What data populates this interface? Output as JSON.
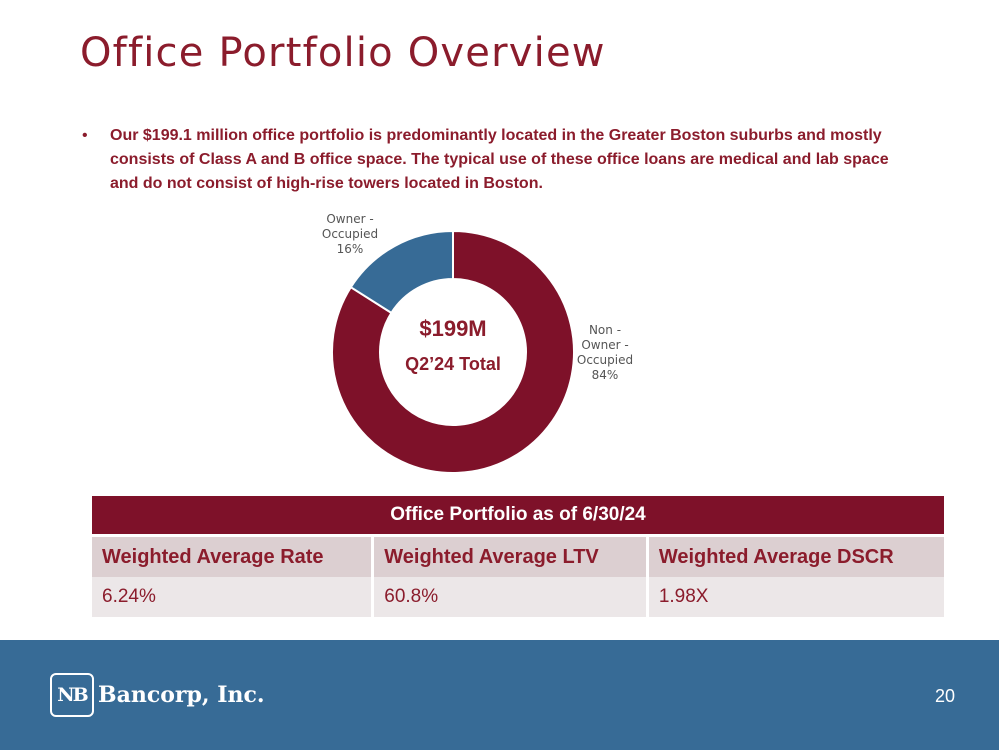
{
  "page": {
    "title": "Office Portfolio Overview",
    "bullet": "Our $199.1 million office portfolio is predominantly located in the Greater Boston suburbs and mostly consists of Class A and B office space. The typical use of these office loans are medical and lab space and do not consist of high-rise towers located in Boston.",
    "page_number": "20"
  },
  "chart_data": {
    "type": "pie",
    "categories": [
      "Non - Owner - Occupied",
      "Owner - Occupied"
    ],
    "values": [
      84,
      16
    ],
    "value_labels": [
      "84%",
      "16%"
    ],
    "colors": [
      "#7e1129",
      "#376b96"
    ],
    "center_value": "$199M",
    "center_label": "Q2’24 Total",
    "labels": {
      "owner": {
        "lines": [
          "Owner -",
          "Occupied"
        ],
        "pct": "16%"
      },
      "nonowner": {
        "lines": [
          "Non -",
          "Owner -",
          "Occupied"
        ],
        "pct": "84%"
      }
    }
  },
  "table": {
    "header": "Office Portfolio as of 6/30/24",
    "columns": [
      "Weighted Average Rate",
      "Weighted Average LTV",
      "Weighted Average DSCR"
    ],
    "rows": [
      [
        "6.24%",
        "60.8%",
        "1.98X"
      ]
    ]
  },
  "footer": {
    "logo_mark": "NB",
    "logo_text": "Bancorp, Inc.",
    "background": "#376b96"
  }
}
